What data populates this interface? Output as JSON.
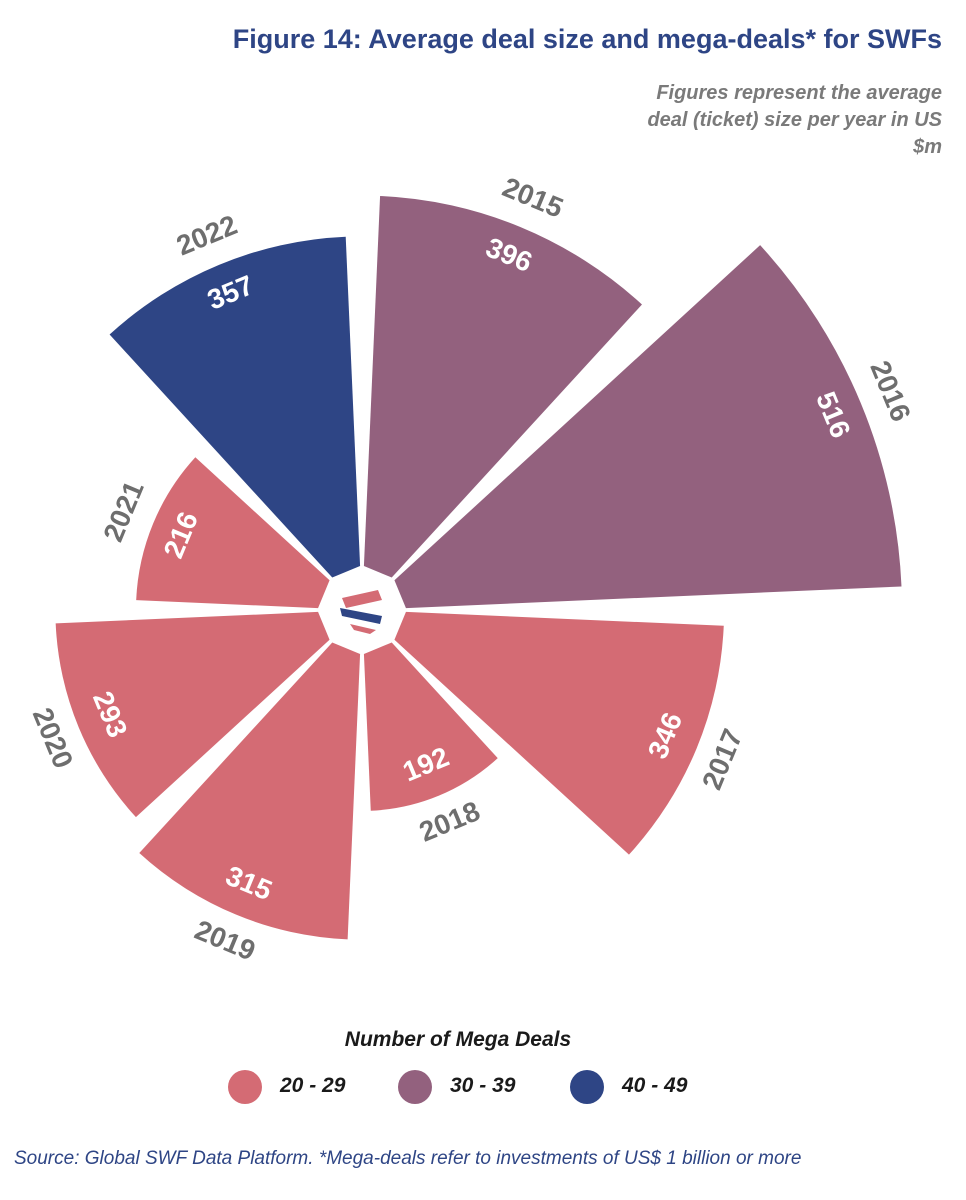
{
  "title": "Figure 14: Average deal size and mega-deals* for SWFs",
  "subtitle": "Figures represent the average deal (ticket) size per year  in US $m",
  "legend": {
    "title": "Number of Mega Deals",
    "items": [
      {
        "label": "20 - 29",
        "color": "#d46b74"
      },
      {
        "label": "30 - 39",
        "color": "#93617e"
      },
      {
        "label": "40 - 49",
        "color": "#2e4585"
      }
    ]
  },
  "source": "Source: Global SWF Data Platform. *Mega-deals refer to investments of US$ 1 billion or more",
  "chart_data": {
    "type": "polar_area",
    "unit": "US $m",
    "series": [
      {
        "year": "2015",
        "value": 396,
        "mega_deals_range": "30 - 39",
        "color": "#93617e"
      },
      {
        "year": "2016",
        "value": 516,
        "mega_deals_range": "30 - 39",
        "color": "#93617e"
      },
      {
        "year": "2017",
        "value": 346,
        "mega_deals_range": "20 - 29",
        "color": "#d46b74"
      },
      {
        "year": "2018",
        "value": 192,
        "mega_deals_range": "20 - 29",
        "color": "#d46b74"
      },
      {
        "year": "2019",
        "value": 315,
        "mega_deals_range": "20 - 29",
        "color": "#d46b74"
      },
      {
        "year": "2020",
        "value": 293,
        "mega_deals_range": "20 - 29",
        "color": "#d46b74"
      },
      {
        "year": "2021",
        "value": 216,
        "mega_deals_range": "20 - 29",
        "color": "#d46b74"
      },
      {
        "year": "2022",
        "value": 357,
        "mega_deals_range": "40 - 49",
        "color": "#2e4585"
      }
    ]
  }
}
